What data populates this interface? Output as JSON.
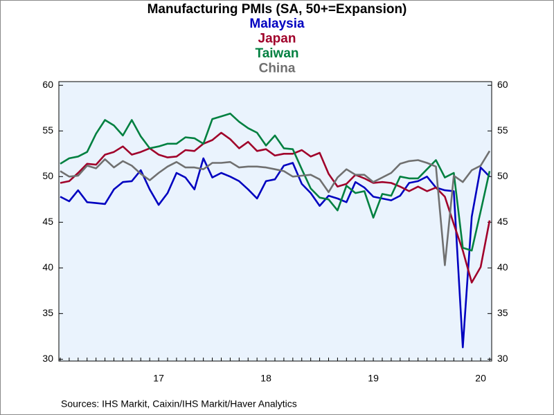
{
  "chart_data": {
    "type": "line",
    "title": "Manufacturing PMIs (SA, 50+=Expansion)",
    "categories": [
      null,
      null,
      null,
      null,
      null,
      null,
      null,
      null,
      null,
      null,
      null,
      "17",
      null,
      null,
      null,
      null,
      null,
      null,
      null,
      null,
      null,
      null,
      null,
      "18",
      null,
      null,
      null,
      null,
      null,
      null,
      null,
      null,
      null,
      null,
      null,
      "19",
      null,
      null,
      null,
      null,
      null,
      null,
      null,
      null,
      null,
      null,
      null,
      "20",
      null
    ],
    "series": [
      {
        "name": "Malaysia",
        "color": "#0000c0",
        "values": [
          47.8,
          47.3,
          48.5,
          47.2,
          47.1,
          47.0,
          48.6,
          49.4,
          49.5,
          50.7,
          48.6,
          46.9,
          48.2,
          50.4,
          49.9,
          48.6,
          52.0,
          49.9,
          50.4,
          50.0,
          49.5,
          48.6,
          47.6,
          49.5,
          49.7,
          51.2,
          51.5,
          49.2,
          48.2,
          46.8,
          47.9,
          47.6,
          47.2,
          49.4,
          48.8,
          47.8,
          47.6,
          47.4,
          47.9,
          49.3,
          49.5,
          50.0,
          48.8,
          48.5,
          48.4,
          31.3,
          45.6,
          51.0,
          50.0
        ]
      },
      {
        "name": "Japan",
        "color": "#a0002a",
        "values": [
          49.3,
          49.5,
          50.4,
          51.4,
          51.3,
          52.4,
          52.7,
          53.3,
          52.4,
          52.7,
          53.1,
          52.4,
          52.1,
          52.2,
          52.9,
          52.8,
          53.6,
          54.0,
          54.8,
          54.1,
          53.1,
          53.8,
          52.8,
          53.0,
          52.3,
          52.5,
          52.5,
          52.9,
          52.2,
          52.6,
          50.3,
          48.9,
          49.2,
          50.2,
          49.8,
          49.3,
          49.4,
          49.3,
          48.9,
          48.4,
          48.9,
          48.4,
          48.8,
          47.8,
          44.8,
          41.9,
          38.4,
          40.1,
          45.2
        ]
      },
      {
        "name": "Taiwan",
        "color": "#008040",
        "values": [
          51.4,
          52.0,
          52.2,
          52.7,
          54.7,
          56.2,
          55.6,
          54.5,
          56.2,
          54.4,
          53.1,
          53.3,
          53.6,
          53.6,
          54.3,
          54.2,
          53.6,
          56.3,
          56.6,
          56.9,
          56.0,
          55.3,
          54.8,
          53.4,
          54.5,
          53.1,
          53.0,
          50.8,
          48.7,
          47.7,
          47.5,
          46.3,
          49.0,
          48.2,
          48.4,
          45.5,
          48.1,
          47.9,
          50.0,
          49.8,
          49.8,
          50.8,
          51.8,
          49.9,
          50.4,
          42.2,
          41.9,
          46.2,
          50.6
        ]
      },
      {
        "name": "China",
        "color": "#707070",
        "values": [
          50.6,
          50.0,
          50.1,
          51.2,
          50.9,
          51.9,
          51.0,
          51.7,
          51.2,
          50.3,
          49.6,
          50.4,
          51.1,
          51.6,
          51.0,
          51.0,
          50.8,
          51.5,
          51.5,
          51.6,
          51.0,
          51.1,
          51.1,
          51.0,
          50.8,
          50.6,
          50.0,
          50.1,
          50.2,
          49.7,
          48.3,
          49.9,
          50.8,
          50.2,
          50.2,
          49.4,
          49.9,
          50.4,
          51.4,
          51.7,
          51.8,
          51.5,
          51.1,
          40.3,
          50.1,
          49.4,
          50.7,
          51.2,
          52.8
        ]
      }
    ],
    "ylim": [
      29.8,
      60.4
    ],
    "yticks": [
      30,
      35,
      40,
      45,
      50,
      55,
      60
    ],
    "source": "Sources:  IHS Markit, Caixin/IHS Markit/Haver Analytics"
  }
}
